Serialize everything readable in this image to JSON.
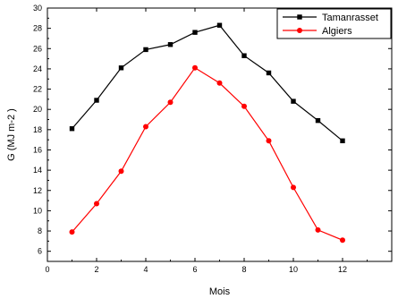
{
  "chart_data": {
    "type": "line",
    "xlabel": "Mois",
    "ylabel": "G (MJ m-2 )",
    "xlim": [
      0,
      14
    ],
    "ylim": [
      5,
      30
    ],
    "xticks": [
      0,
      2,
      4,
      6,
      8,
      10,
      12
    ],
    "yticks": [
      6,
      8,
      10,
      12,
      14,
      16,
      18,
      20,
      22,
      24,
      26,
      28,
      30
    ],
    "grid": false,
    "legend_position": "top-right",
    "x": [
      1,
      2,
      3,
      4,
      5,
      6,
      7,
      8,
      9,
      10,
      11,
      12
    ],
    "series": [
      {
        "name": "Tamanrasset",
        "color": "#000000",
        "marker": "square",
        "values": [
          18.1,
          20.9,
          24.1,
          25.9,
          26.4,
          27.6,
          28.3,
          25.3,
          23.6,
          20.8,
          18.9,
          16.9
        ]
      },
      {
        "name": "Algiers",
        "color": "#ff0000",
        "marker": "circle",
        "values": [
          7.9,
          10.7,
          13.9,
          18.3,
          20.7,
          24.1,
          22.6,
          20.3,
          16.9,
          12.3,
          8.1,
          7.1
        ]
      }
    ]
  }
}
